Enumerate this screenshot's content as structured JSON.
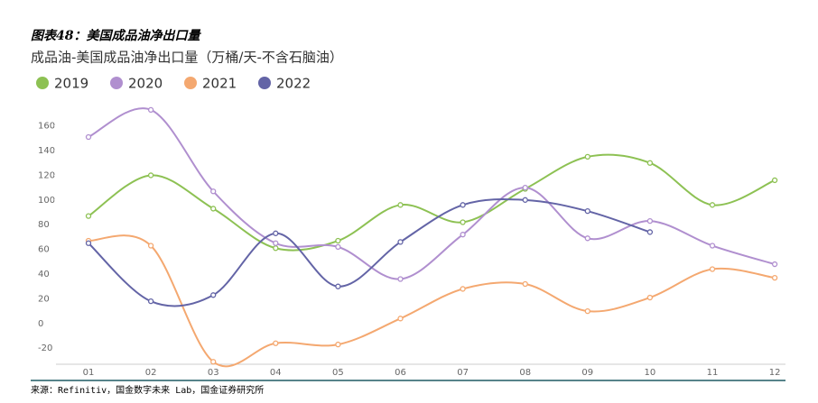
{
  "figure_caption": "图表48：美国成品油净出口量",
  "source": "来源：Refinitiv，国金数字未来 Lab，国金证券研究所",
  "chart_data": {
    "type": "line",
    "title": "成品油-美国成品油净出口量（万桶/天-不含石脑油）",
    "categories": [
      "01",
      "02",
      "03",
      "04",
      "05",
      "06",
      "07",
      "08",
      "09",
      "10",
      "11",
      "12"
    ],
    "series": [
      {
        "name": "2019",
        "color": "#8dc153",
        "values": [
          87,
          120,
          93,
          61,
          67,
          96,
          82,
          109,
          135,
          130,
          96,
          116
        ]
      },
      {
        "name": "2020",
        "color": "#b08fcf",
        "values": [
          151,
          173,
          107,
          65,
          62,
          36,
          72,
          110,
          69,
          83,
          63,
          48
        ]
      },
      {
        "name": "2021",
        "color": "#f4a870",
        "values": [
          67,
          63,
          -31,
          -16,
          -17,
          4,
          28,
          32,
          10,
          21,
          44,
          37
        ]
      },
      {
        "name": "2022",
        "color": "#6364a6",
        "values": [
          65,
          18,
          23,
          73,
          30,
          66,
          96,
          100,
          91,
          74,
          null,
          null
        ]
      }
    ],
    "ylim": [
      -33,
      178
    ],
    "yticks": [
      -20,
      0,
      20,
      40,
      60,
      80,
      100,
      120,
      140,
      160
    ],
    "legend": "top-left",
    "grid": false
  }
}
